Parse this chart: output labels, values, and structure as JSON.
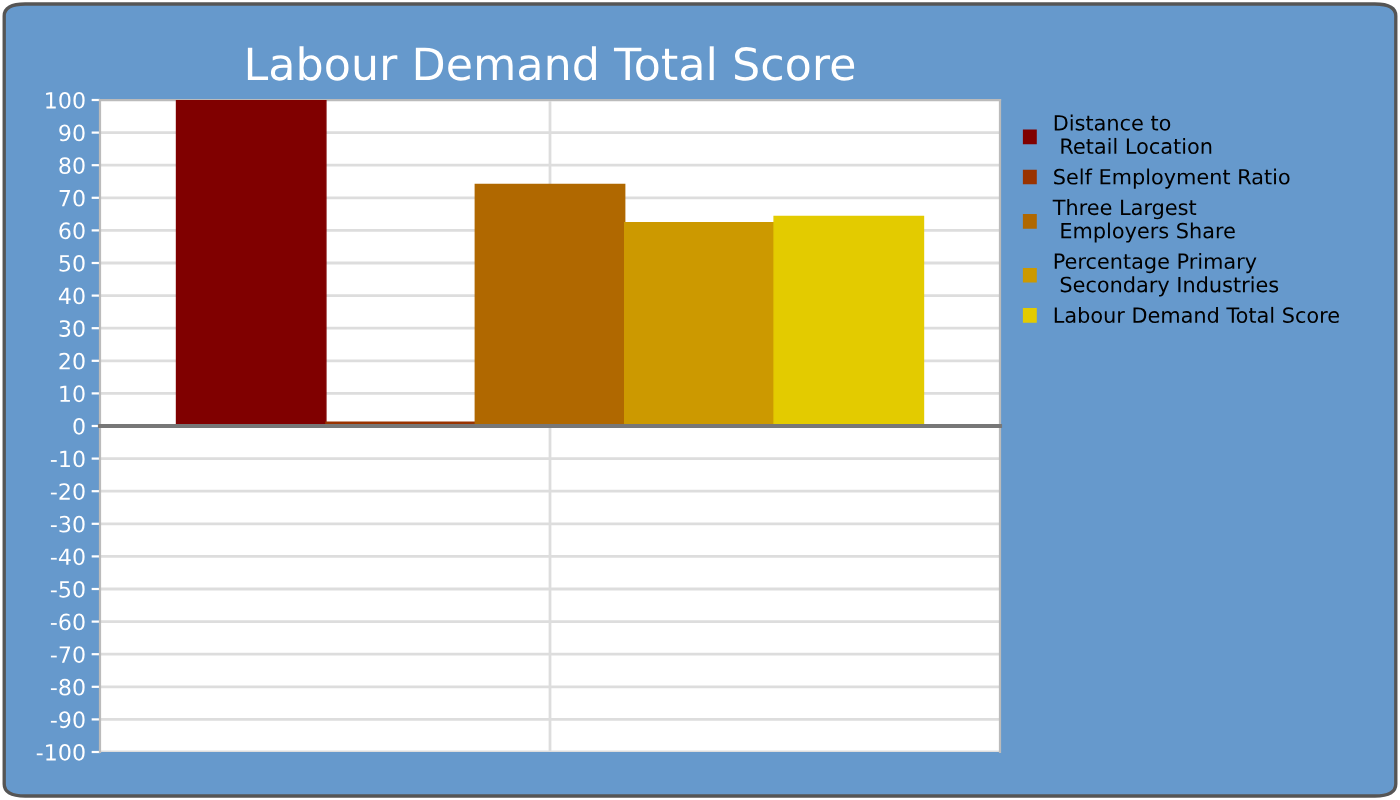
{
  "chart_data": {
    "type": "bar",
    "title": "Labour Demand Total Score",
    "categories": [
      null
    ],
    "series": [
      {
        "name": "Distance to\n Retail Location",
        "color": "#800000",
        "values": [
          100
        ]
      },
      {
        "name": "Self Employment Ratio",
        "color": "#993300",
        "values": [
          1.2
        ]
      },
      {
        "name": "Three Largest\n Employers Share",
        "color": "#b06800",
        "values": [
          74.1
        ]
      },
      {
        "name": "Percentage Primary\n Secondary Industries",
        "color": "#cc9900",
        "values": [
          62.4
        ]
      },
      {
        "name": "Labour Demand Total Score",
        "color": "#e3cb00",
        "values": [
          64.3
        ]
      }
    ],
    "ylim": [
      -100,
      100
    ],
    "yticks": [
      -100,
      -90,
      -80,
      -70,
      -60,
      -50,
      -40,
      -30,
      -20,
      -10,
      0,
      10,
      20,
      30,
      40,
      50,
      60,
      70,
      80,
      90,
      100
    ],
    "grid": true,
    "legend": "right"
  }
}
